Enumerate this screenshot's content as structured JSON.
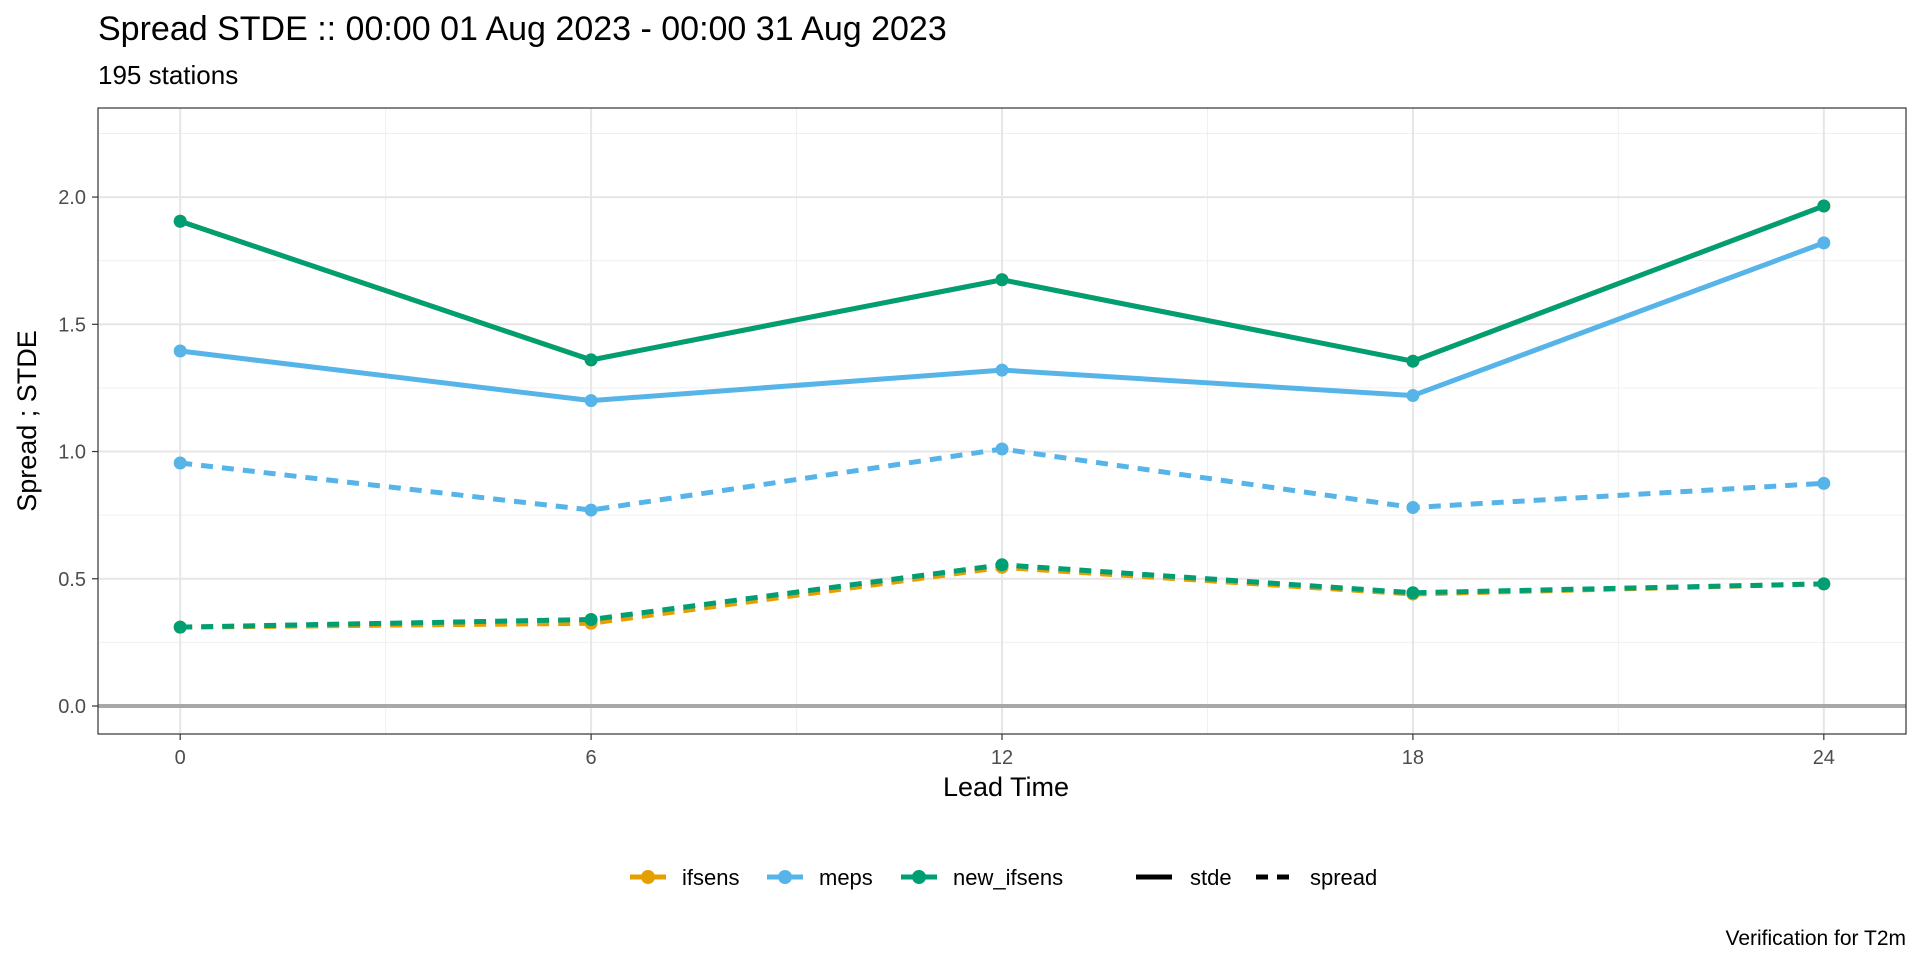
{
  "chart_data": {
    "type": "line",
    "title": "Spread STDE :: 00:00 01 Aug 2023 - 00:00 31 Aug 2023",
    "subtitle": "195 stations",
    "xlabel": "Lead Time",
    "ylabel": "Spread ; STDE",
    "caption": "Verification for T2m",
    "x": [
      0,
      6,
      12,
      18,
      24
    ],
    "xlim": [
      -1.2,
      25.2
    ],
    "ylim": [
      -0.11,
      2.35
    ],
    "x_ticks": [
      0,
      6,
      12,
      18,
      24
    ],
    "y_ticks": [
      0.0,
      0.5,
      1.0,
      1.5,
      2.0
    ],
    "y_tick_labels": [
      "0.0",
      "0.5",
      "1.0",
      "1.5",
      "2.0"
    ],
    "grid": true,
    "hline": 0,
    "legend_position": "bottom",
    "legend_colour": [
      {
        "name": "ifsens",
        "color": "#E69F00"
      },
      {
        "name": "meps",
        "color": "#56B4E9"
      },
      {
        "name": "new_ifsens",
        "color": "#009E73"
      }
    ],
    "legend_linetype": [
      {
        "name": "stde",
        "dash": "solid"
      },
      {
        "name": "spread",
        "dash": "dashed"
      }
    ],
    "series": [
      {
        "name": "ifsens",
        "type": "stde",
        "color": "#E69F00",
        "dash": "solid",
        "values": [
          1.905,
          1.36,
          1.675,
          1.355,
          1.965
        ]
      },
      {
        "name": "ifsens",
        "type": "spread",
        "color": "#E69F00",
        "dash": "dashed",
        "values": [
          0.31,
          0.325,
          0.545,
          0.44,
          0.48
        ]
      },
      {
        "name": "meps",
        "type": "stde",
        "color": "#56B4E9",
        "dash": "solid",
        "values": [
          1.395,
          1.2,
          1.32,
          1.22,
          1.82
        ]
      },
      {
        "name": "meps",
        "type": "spread",
        "color": "#56B4E9",
        "dash": "dashed",
        "values": [
          0.955,
          0.77,
          1.01,
          0.78,
          0.875
        ]
      },
      {
        "name": "new_ifsens",
        "type": "stde",
        "color": "#009E73",
        "dash": "solid",
        "values": [
          1.905,
          1.36,
          1.675,
          1.355,
          1.965
        ]
      },
      {
        "name": "new_ifsens",
        "type": "spread",
        "color": "#009E73",
        "dash": "dashed",
        "values": [
          0.31,
          0.34,
          0.555,
          0.445,
          0.48
        ]
      }
    ]
  }
}
